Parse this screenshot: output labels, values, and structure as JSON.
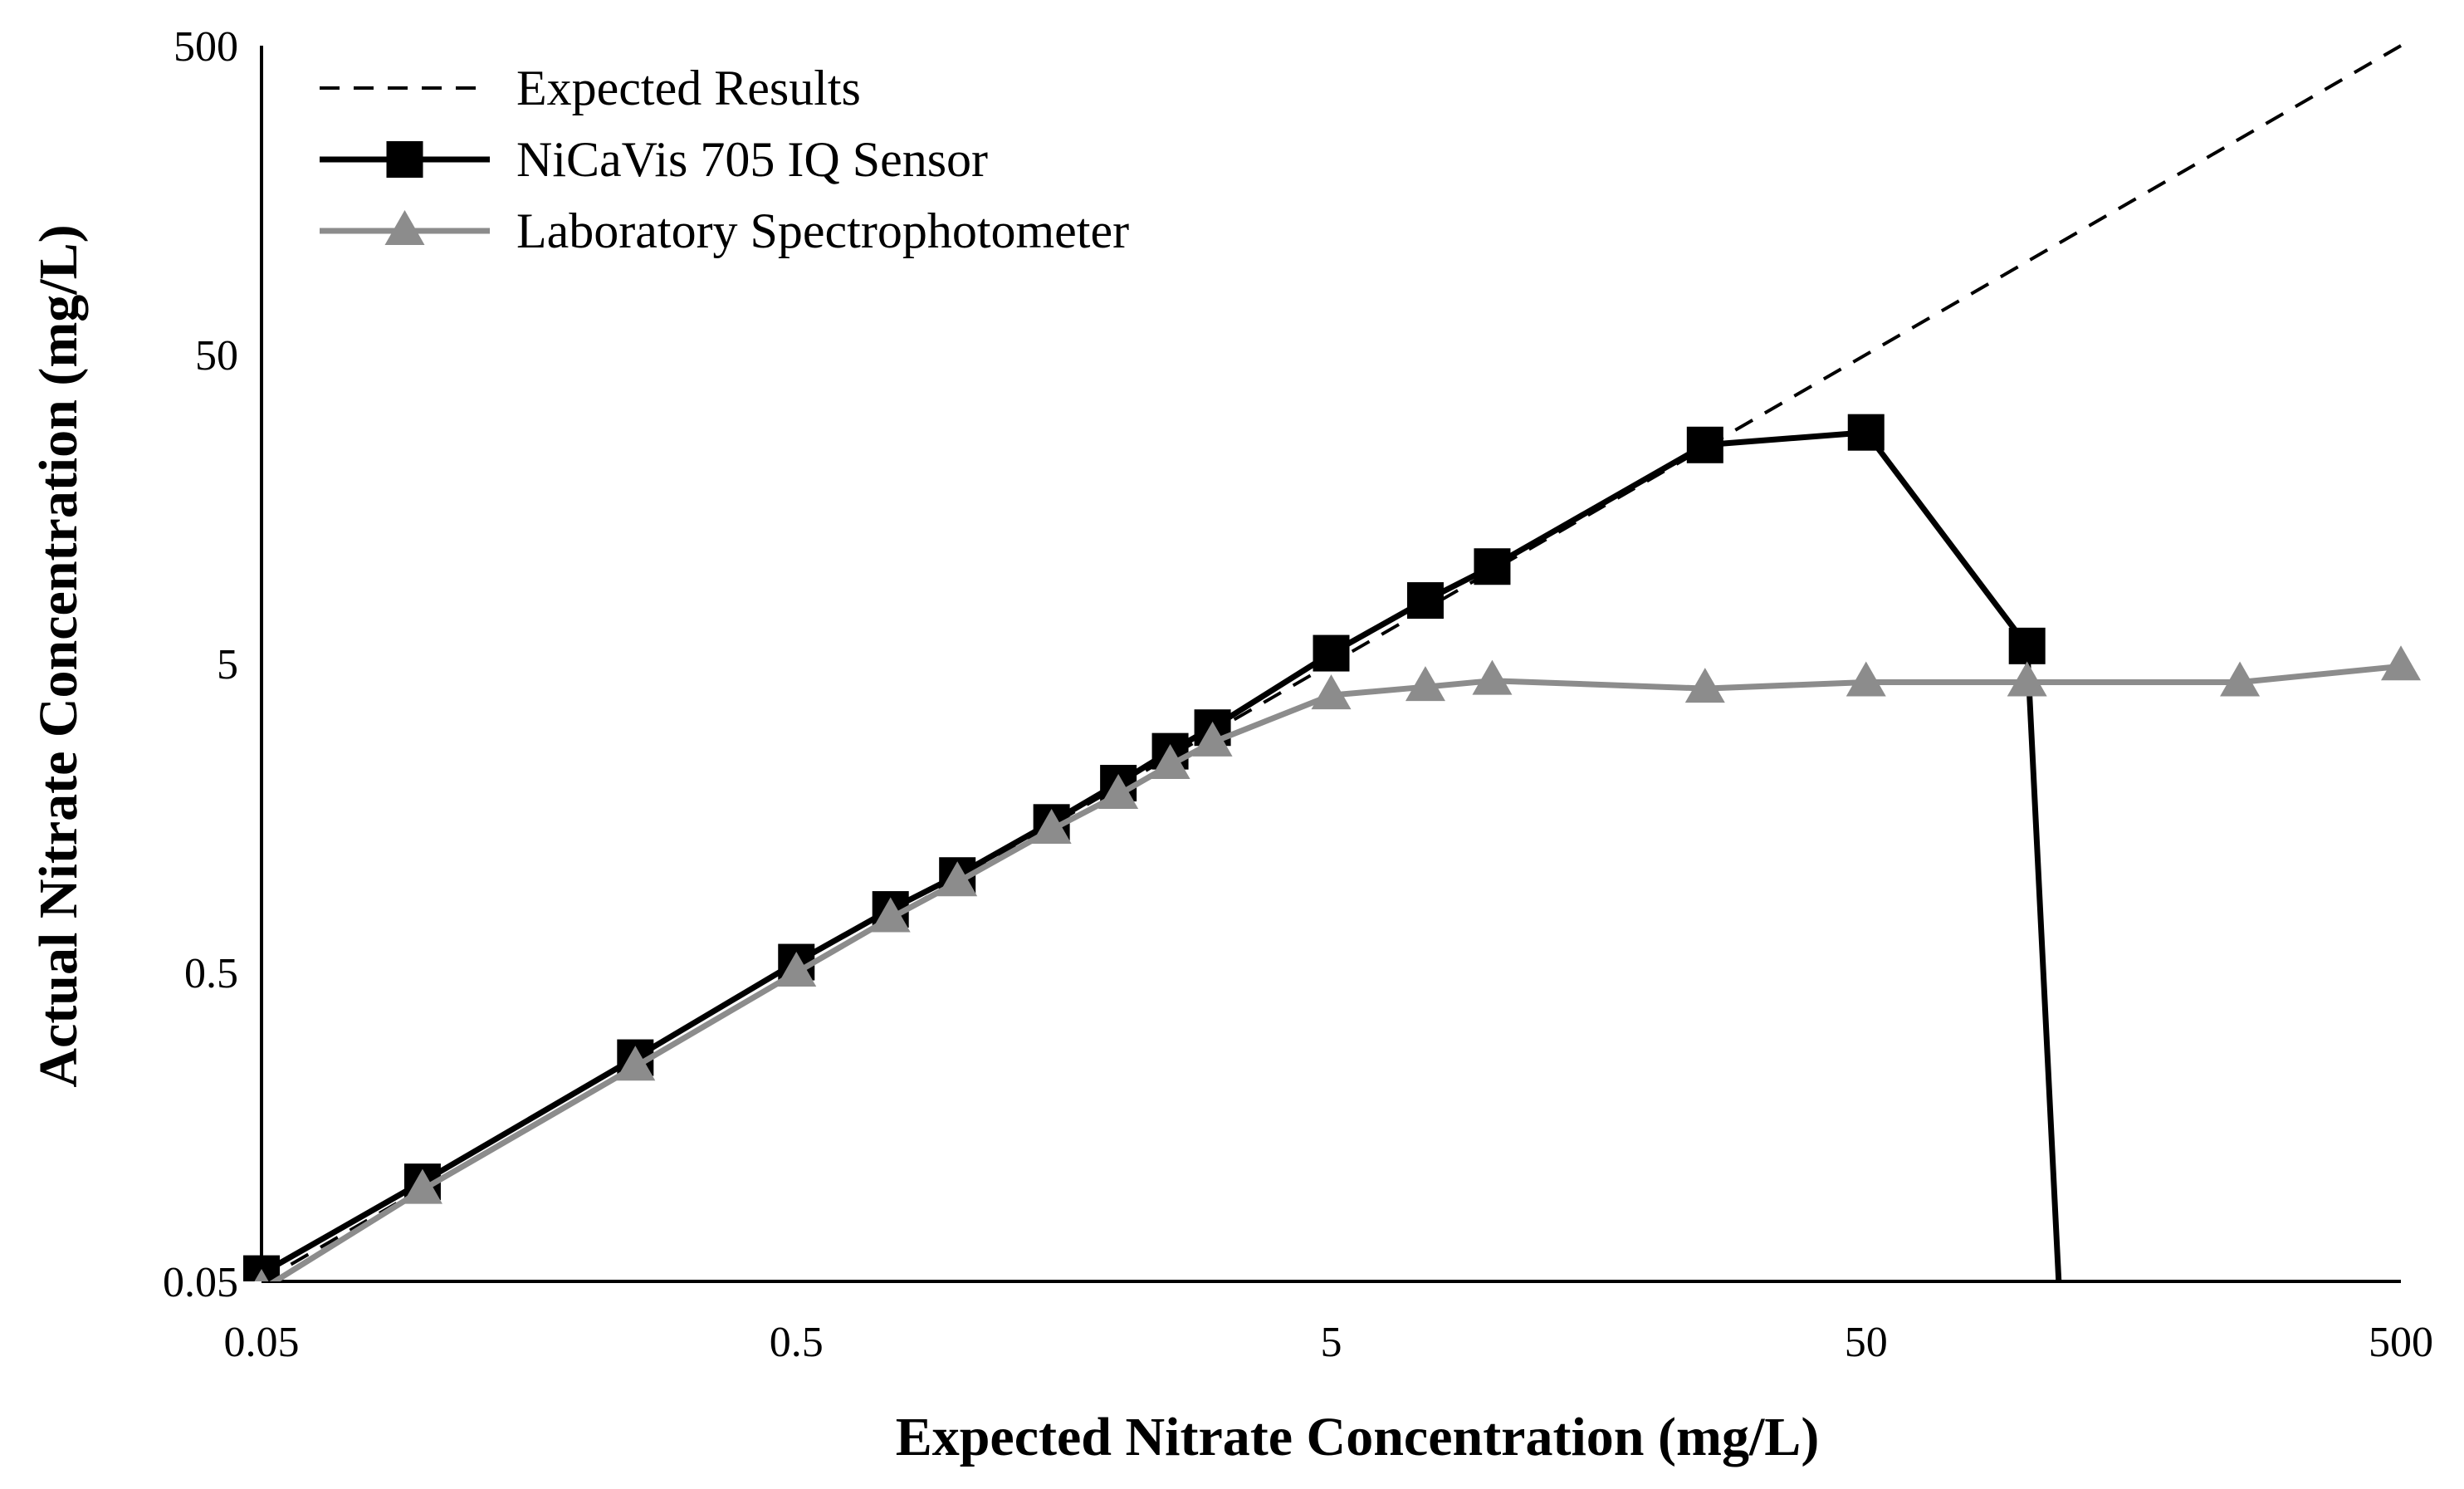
{
  "chart_data": {
    "type": "line",
    "title": "",
    "xlabel": "Expected Nitrate Concentration (mg/L)",
    "ylabel": "Actual Nitrate Concentration (mg/L)",
    "xscale": "log",
    "yscale": "log",
    "xlim": [
      0.05,
      500
    ],
    "ylim": [
      0.05,
      500
    ],
    "x_ticks": [
      "0.05",
      "0.5",
      "5",
      "50",
      "500"
    ],
    "y_ticks": [
      "0.05",
      "0.5",
      "5",
      "50",
      "500"
    ],
    "x_tick_values": [
      0.05,
      0.5,
      5,
      50,
      500
    ],
    "y_tick_values": [
      0.05,
      0.5,
      5,
      50,
      500
    ],
    "legend_position": "top-left",
    "series": [
      {
        "name": "Expected Results",
        "style": "dashed",
        "color": "#000000",
        "marker": "none",
        "x": [
          0.05,
          500
        ],
        "y": [
          0.05,
          500
        ]
      },
      {
        "name": "NiCaVis 705 IQ Sensor",
        "style": "solid",
        "color": "#000000",
        "marker": "square",
        "x": [
          0.05,
          0.1,
          0.25,
          0.5,
          0.75,
          1.0,
          1.5,
          2.0,
          2.5,
          3.0,
          5.0,
          7.5,
          10,
          25,
          50,
          100
        ],
        "y": [
          0.053,
          0.105,
          0.265,
          0.54,
          0.8,
          1.03,
          1.53,
          2.05,
          2.6,
          3.1,
          5.4,
          8.0,
          10.3,
          25.5,
          28.0,
          5.7
        ]
      },
      {
        "name": "Laboratory Spectrophotometer",
        "style": "solid",
        "color": "#8c8c8c",
        "marker": "triangle",
        "x": [
          0.05,
          0.1,
          0.25,
          0.5,
          0.75,
          1.0,
          1.5,
          2.0,
          2.5,
          3.0,
          5.0,
          7.5,
          10,
          25,
          50,
          100,
          250,
          500
        ],
        "y": [
          0.047,
          0.099,
          0.248,
          0.5,
          0.75,
          0.98,
          1.45,
          1.88,
          2.35,
          2.78,
          3.95,
          4.2,
          4.4,
          4.15,
          4.35,
          4.35,
          4.35,
          4.9
        ]
      }
    ],
    "annotations": [
      {
        "series": "NiCaVis 705 IQ Sensor",
        "note": "line drops vertically below 0.05 after x = 100",
        "x_end": 115
      }
    ]
  }
}
